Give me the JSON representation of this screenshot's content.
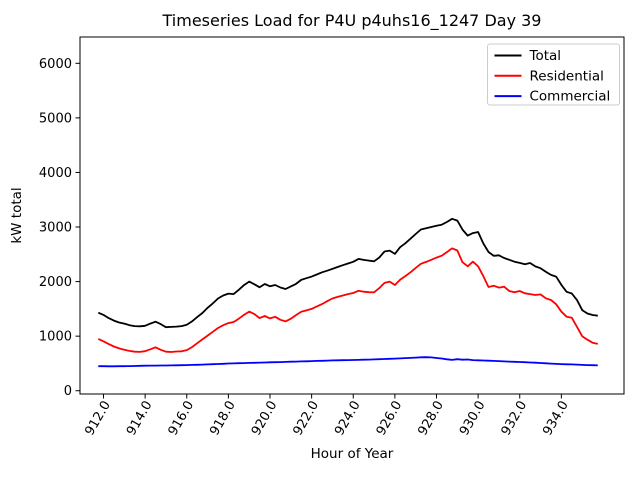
{
  "chart": {
    "title": "Timeseries Load for P4U p4uhs16_1247  Day 39",
    "xlabel": "Hour of Year",
    "ylabel": "kW total",
    "background_color": "#ffffff",
    "axis_color": "#000000",
    "legend": {
      "position": "upper right",
      "border_color": "#cccccc",
      "entries": [
        {
          "label": "Total",
          "color": "#000000"
        },
        {
          "label": "Residential",
          "color": "#ff0000"
        },
        {
          "label": "Commercial",
          "color": "#0000ff"
        }
      ]
    },
    "xticks": {
      "values": [
        912,
        914,
        916,
        918,
        920,
        922,
        924,
        926,
        928,
        930,
        932,
        934
      ],
      "labels": [
        "912.0",
        "914.0",
        "916.0",
        "918.0",
        "920.0",
        "922.0",
        "924.0",
        "926.0",
        "928.0",
        "930.0",
        "932.0",
        "934.0"
      ],
      "rotation_deg": 60
    },
    "yticks": {
      "values": [
        0,
        1000,
        2000,
        3000,
        4000,
        5000,
        6000
      ],
      "labels": [
        "0",
        "1000",
        "2000",
        "3000",
        "4000",
        "5000",
        "6000"
      ]
    },
    "xlim": [
      910.87,
      937.01
    ],
    "ylim": [
      -60,
      6482
    ],
    "grid": false
  },
  "chart_data": {
    "type": "line",
    "title": "Timeseries Load for P4U p4uhs16_1247  Day 39",
    "xlabel": "Hour of Year",
    "ylabel": "kW total",
    "x_unit": "hour of year (15-min resolution)",
    "x": [
      911.75,
      912.0,
      912.25,
      912.5,
      912.75,
      913.0,
      913.25,
      913.5,
      913.75,
      914.0,
      914.25,
      914.5,
      914.75,
      915.0,
      915.25,
      915.5,
      915.75,
      916.0,
      916.25,
      916.5,
      916.75,
      917.0,
      917.25,
      917.5,
      917.75,
      918.0,
      918.25,
      918.5,
      918.75,
      919.0,
      919.25,
      919.5,
      919.75,
      920.0,
      920.25,
      920.5,
      920.75,
      921.0,
      921.25,
      921.5,
      921.75,
      922.0,
      922.25,
      922.5,
      922.75,
      923.0,
      923.25,
      923.5,
      923.75,
      924.0,
      924.25,
      924.5,
      924.75,
      925.0,
      925.25,
      925.5,
      925.75,
      926.0,
      926.25,
      926.5,
      926.75,
      927.0,
      927.25,
      927.5,
      927.75,
      928.0,
      928.25,
      928.5,
      928.75,
      929.0,
      929.25,
      929.5,
      929.75,
      930.0,
      930.25,
      930.5,
      930.75,
      931.0,
      931.25,
      931.5,
      931.75,
      932.0,
      932.25,
      932.5,
      932.75,
      933.0,
      933.25,
      933.5,
      933.75,
      934.0,
      934.25,
      934.5,
      934.75,
      935.0,
      935.25,
      935.5,
      935.75
    ],
    "series": [
      {
        "name": "Total",
        "color": "#000000",
        "values": [
          1430,
          1390,
          1330,
          1285,
          1250,
          1230,
          1200,
          1185,
          1180,
          1190,
          1230,
          1265,
          1220,
          1165,
          1170,
          1175,
          1185,
          1210,
          1270,
          1350,
          1425,
          1520,
          1600,
          1690,
          1745,
          1780,
          1770,
          1850,
          1935,
          2000,
          1950,
          1895,
          1956,
          1913,
          1937,
          1892,
          1864,
          1912,
          1958,
          2030,
          2062,
          2092,
          2130,
          2170,
          2200,
          2232,
          2268,
          2300,
          2332,
          2362,
          2415,
          2398,
          2385,
          2372,
          2442,
          2552,
          2568,
          2508,
          2630,
          2702,
          2785,
          2872,
          2955,
          2978,
          3000,
          3022,
          3042,
          3092,
          3150,
          3118,
          2952,
          2842,
          2888,
          2908,
          2700,
          2542,
          2472,
          2482,
          2432,
          2400,
          2365,
          2342,
          2318,
          2340,
          2278,
          2245,
          2180,
          2122,
          2090,
          1940,
          1812,
          1782,
          1660,
          1478,
          1415,
          1388,
          1375
        ]
      },
      {
        "name": "Residential",
        "color": "#ff0000",
        "values": [
          950,
          905,
          855,
          810,
          775,
          750,
          730,
          715,
          712,
          725,
          760,
          795,
          750,
          715,
          710,
          718,
          722,
          745,
          800,
          870,
          940,
          1010,
          1080,
          1150,
          1200,
          1240,
          1260,
          1320,
          1390,
          1450,
          1405,
          1330,
          1370,
          1325,
          1355,
          1300,
          1270,
          1320,
          1385,
          1447,
          1472,
          1500,
          1545,
          1588,
          1640,
          1690,
          1720,
          1745,
          1770,
          1790,
          1832,
          1815,
          1805,
          1803,
          1880,
          1975,
          2000,
          1937,
          2035,
          2100,
          2170,
          2250,
          2325,
          2360,
          2400,
          2440,
          2475,
          2540,
          2610,
          2570,
          2355,
          2280,
          2364,
          2280,
          2100,
          1900,
          1925,
          1890,
          1906,
          1827,
          1803,
          1827,
          1785,
          1770,
          1754,
          1766,
          1693,
          1662,
          1583,
          1448,
          1356,
          1338,
          1170,
          1000,
          935,
          880,
          858
        ]
      },
      {
        "name": "Commercial",
        "color": "#0000ff",
        "values": [
          450,
          449,
          448,
          448,
          449,
          450,
          452,
          454,
          456,
          458,
          460,
          461,
          462,
          463,
          464,
          466,
          468,
          470,
          473,
          476,
          479,
          482,
          486,
          490,
          494,
          498,
          501,
          504,
          507,
          510,
          512,
          515,
          517,
          520,
          522,
          525,
          528,
          531,
          534,
          537,
          540,
          543,
          546,
          549,
          552,
          555,
          557,
          559,
          561,
          563,
          565,
          568,
          571,
          574,
          577,
          581,
          585,
          589,
          593,
          598,
          602,
          607,
          612,
          614,
          610,
          600,
          590,
          575,
          565,
          578,
          568,
          572,
          562,
          558,
          554,
          550,
          546,
          542,
          538,
          534,
          530,
          526,
          522,
          518,
          513,
          508,
          503,
          497,
          492,
          488,
          485,
          482,
          478,
          474,
          470,
          467,
          465
        ]
      }
    ],
    "legend_entries": [
      "Total",
      "Residential",
      "Commercial"
    ],
    "xlim": [
      910.87,
      937.01
    ],
    "ylim": [
      -60,
      6482
    ],
    "grid": false,
    "legend_position": "upper right"
  }
}
